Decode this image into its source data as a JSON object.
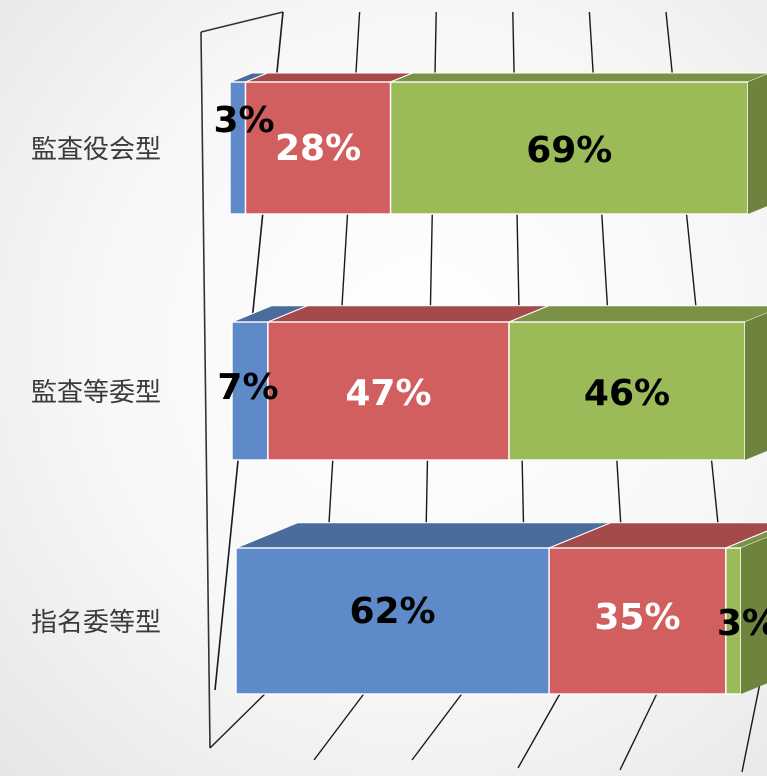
{
  "chart_data": {
    "type": "bar",
    "orientation": "horizontal",
    "stacked": "100%",
    "style": "3d",
    "categories": [
      "監査役会型",
      "監査等委型",
      "指名委等型"
    ],
    "series": [
      {
        "values": [
          3,
          7,
          62
        ],
        "labels": [
          "3%",
          "7%",
          "62%"
        ],
        "color": "#5f8ac9",
        "label_color": "#000000"
      },
      {
        "values": [
          28,
          47,
          35
        ],
        "labels": [
          "28%",
          "47%",
          "35%"
        ],
        "color": "#d25f5f",
        "label_color": "#ffffff"
      },
      {
        "values": [
          69,
          46,
          3
        ],
        "labels": [
          "69%",
          "46%",
          "3%"
        ],
        "color": "#9bbb59",
        "label_color": "#000000"
      }
    ],
    "xlim": [
      0,
      100
    ],
    "grid": true,
    "legend": "none"
  }
}
